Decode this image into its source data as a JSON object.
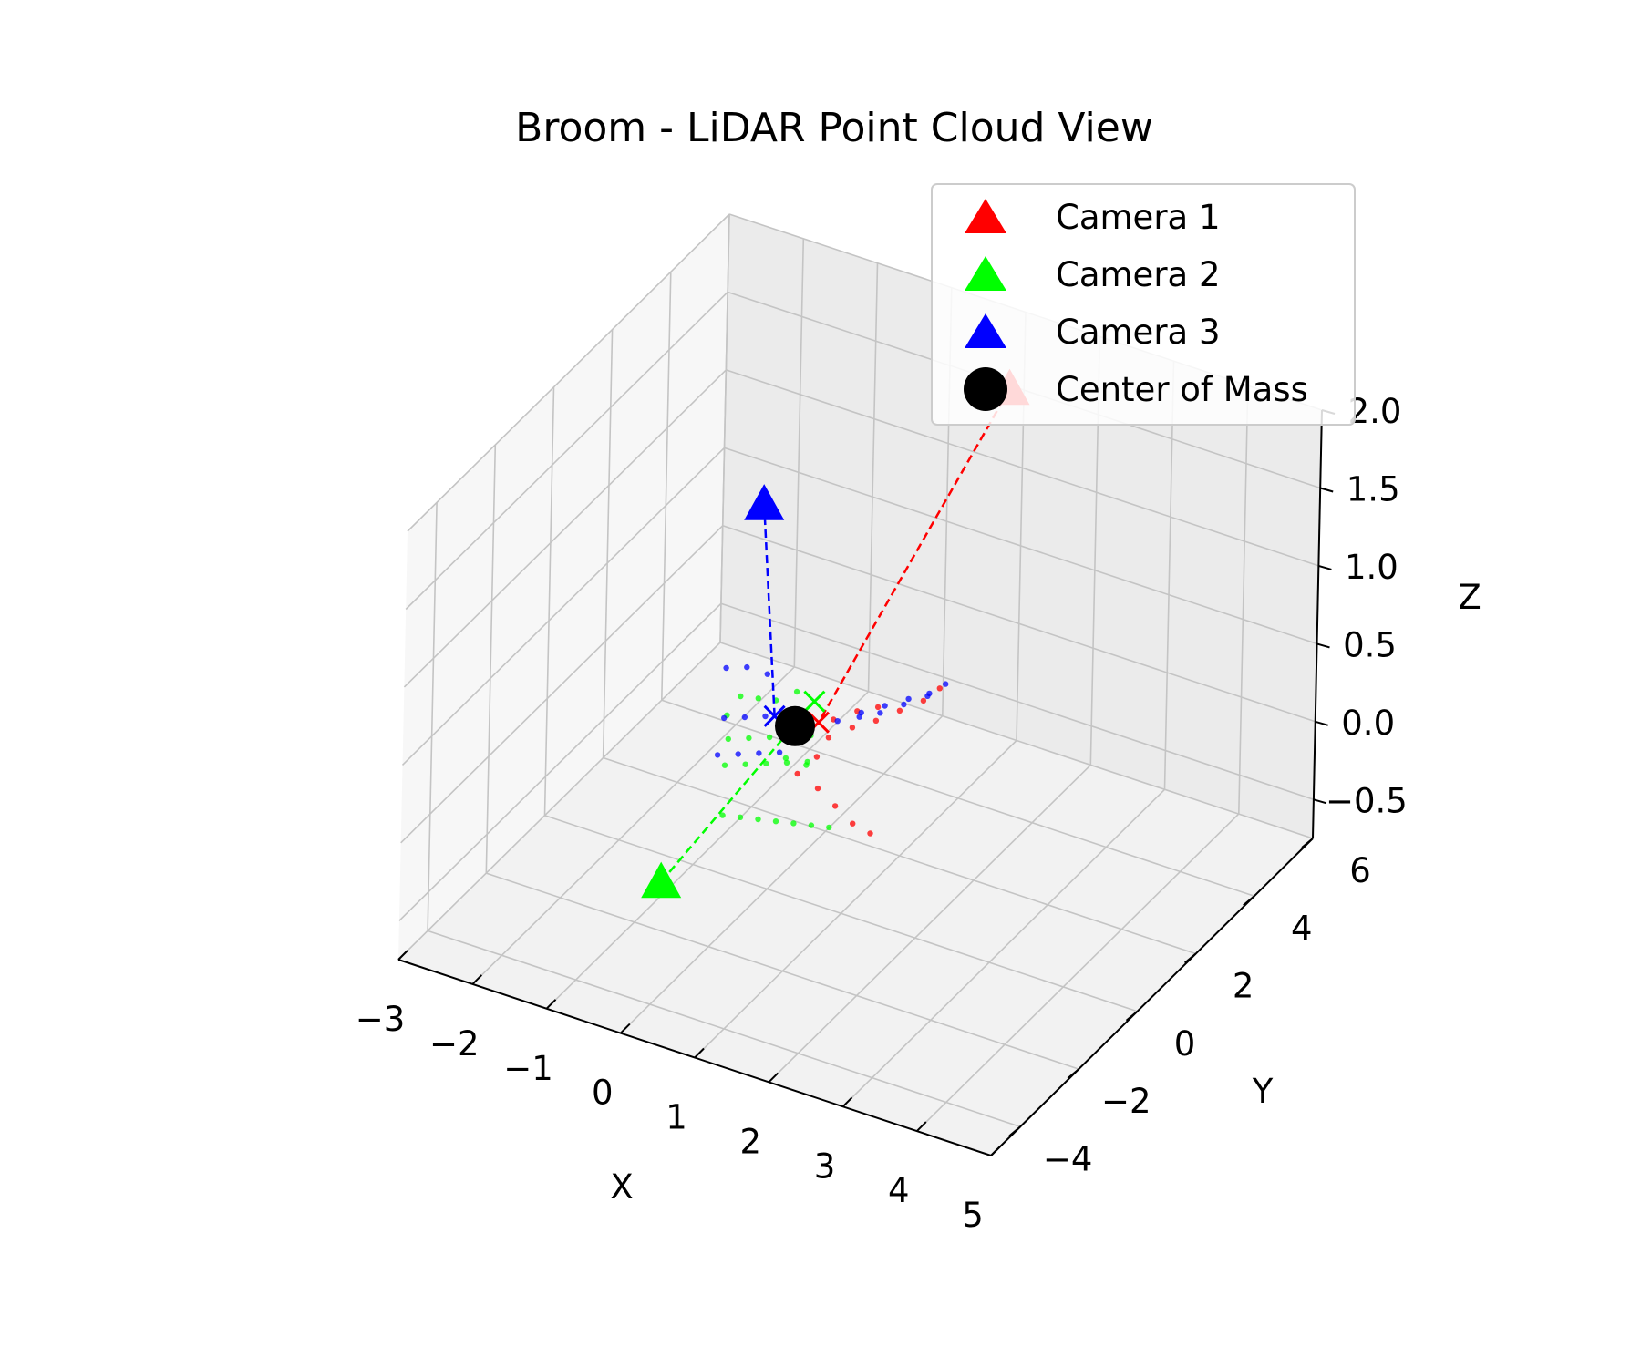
{
  "chart_data": {
    "type": "scatter",
    "projection": "3d",
    "title": "Broom - LiDAR Point Cloud View",
    "xlabel": "X",
    "ylabel": "Y",
    "zlabel": "Z",
    "xlim": [
      -3,
      5
    ],
    "ylim": [
      -5,
      6
    ],
    "zlim": [
      -0.75,
      2.0
    ],
    "x_ticks": [
      "−3",
      "−2",
      "−1",
      "0",
      "1",
      "2",
      "3",
      "4",
      "5"
    ],
    "y_ticks": [
      "−4",
      "−2",
      "0",
      "2",
      "4",
      "6"
    ],
    "z_ticks": [
      "−0.5",
      "0.0",
      "0.5",
      "1.0",
      "1.5",
      "2.0"
    ],
    "grid": true,
    "legend_position": "top-right",
    "legend": [
      {
        "label": "Camera 1",
        "marker": "triangle",
        "color": "#ff0000"
      },
      {
        "label": "Camera 2",
        "marker": "triangle",
        "color": "#00ff00"
      },
      {
        "label": "Camera 3",
        "marker": "triangle",
        "color": "#0000ff"
      },
      {
        "label": "Center of Mass",
        "marker": "circle",
        "color": "#000000"
      }
    ],
    "cameras": [
      {
        "name": "Camera 1",
        "x": 1.0,
        "y": 5.5,
        "z": 1.6,
        "color": "#ff0000"
      },
      {
        "name": "Camera 2",
        "x": 0.5,
        "y": -5.0,
        "z": 0.3,
        "color": "#00ff00"
      },
      {
        "name": "Camera 3",
        "x": -0.3,
        "y": 0.4,
        "z": 1.6,
        "color": "#0000ff"
      }
    ],
    "center_of_mass": {
      "x": 0.1,
      "y": 0.6,
      "z": 0.2,
      "color": "#000000"
    },
    "target_markers": [
      {
        "camera": "Camera 1",
        "x": 0.3,
        "y": 0.9,
        "z": 0.2,
        "color": "#ff0000"
      },
      {
        "camera": "Camera 2",
        "x": 0.2,
        "y": 1.0,
        "z": 0.3,
        "color": "#00ff00"
      },
      {
        "camera": "Camera 3",
        "x": -0.1,
        "y": 0.4,
        "z": 0.27,
        "color": "#0000ff"
      }
    ],
    "point_cloud": {
      "Camera 1": {
        "color": "#ff0000",
        "points": [
          [
            0.1,
            0.4,
            0.2
          ],
          [
            0.3,
            0.7,
            0.22
          ],
          [
            0.5,
            0.9,
            0.25
          ],
          [
            0.7,
            1.2,
            0.28
          ],
          [
            0.9,
            1.4,
            0.3
          ],
          [
            0.0,
            0.6,
            0.15
          ],
          [
            0.2,
            0.8,
            0.12
          ],
          [
            0.4,
            1.0,
            0.1
          ],
          [
            0.6,
            1.3,
            0.14
          ],
          [
            0.8,
            1.6,
            0.16
          ],
          [
            1.0,
            1.9,
            0.2
          ],
          [
            1.2,
            2.2,
            0.24
          ],
          [
            1.3,
            2.5,
            0.28
          ],
          [
            0.3,
            0.2,
            0.0
          ],
          [
            0.5,
            0.4,
            -0.1
          ],
          [
            0.7,
            0.5,
            -0.2
          ],
          [
            0.9,
            0.6,
            -0.3
          ],
          [
            0.2,
            0.5,
            0.3
          ],
          [
            0.4,
            0.6,
            0.05
          ],
          [
            1.1,
            0.7,
            -0.35
          ]
        ]
      },
      "Camera 2": {
        "color": "#00ff00",
        "points": [
          [
            -0.6,
            0.1,
            0.1
          ],
          [
            -0.4,
            0.3,
            0.1
          ],
          [
            -0.2,
            0.5,
            0.1
          ],
          [
            0.0,
            0.7,
            0.1
          ],
          [
            0.2,
            0.9,
            0.1
          ],
          [
            -0.6,
            0.0,
            -0.05
          ],
          [
            -0.4,
            0.2,
            -0.05
          ],
          [
            -0.2,
            0.4,
            -0.05
          ],
          [
            0.0,
            0.6,
            -0.05
          ],
          [
            0.2,
            0.8,
            -0.05
          ],
          [
            -0.5,
            -0.3,
            -0.3
          ],
          [
            -0.3,
            -0.2,
            -0.3
          ],
          [
            -0.1,
            -0.1,
            -0.3
          ],
          [
            0.1,
            0.0,
            -0.3
          ],
          [
            0.3,
            0.1,
            -0.3
          ],
          [
            0.5,
            0.2,
            -0.3
          ],
          [
            0.7,
            0.3,
            -0.3
          ],
          [
            -0.6,
            0.5,
            0.3
          ],
          [
            -0.4,
            0.6,
            0.3
          ],
          [
            -0.2,
            0.7,
            0.3
          ],
          [
            0.0,
            0.9,
            0.35
          ],
          [
            0.1,
            0.3,
            0.05
          ],
          [
            0.3,
            0.5,
            0.0
          ],
          [
            -0.7,
            0.3,
            0.2
          ]
        ]
      },
      "Camera 3": {
        "color": "#0000ff",
        "points": [
          [
            -0.8,
            0.5,
            0.45
          ],
          [
            -0.6,
            0.7,
            0.45
          ],
          [
            -0.4,
            0.9,
            0.4
          ],
          [
            -0.7,
            0.2,
            0.2
          ],
          [
            -0.5,
            0.4,
            0.2
          ],
          [
            -0.3,
            0.6,
            0.2
          ],
          [
            -0.7,
            0.0,
            0.0
          ],
          [
            -0.5,
            0.2,
            0.0
          ],
          [
            -0.3,
            0.4,
            0.0
          ],
          [
            -0.1,
            0.6,
            0.0
          ],
          [
            0.4,
            1.3,
            0.15
          ],
          [
            0.6,
            1.6,
            0.18
          ],
          [
            0.8,
            1.9,
            0.2
          ],
          [
            1.0,
            2.2,
            0.22
          ],
          [
            1.2,
            2.4,
            0.25
          ],
          [
            1.3,
            2.7,
            0.27
          ],
          [
            0.5,
            1.8,
            0.1
          ],
          [
            0.7,
            2.0,
            0.12
          ],
          [
            0.9,
            2.3,
            0.15
          ],
          [
            1.1,
            2.6,
            0.18
          ],
          [
            0.2,
            0.4,
            0.18
          ],
          [
            0.0,
            0.8,
            0.22
          ]
        ]
      }
    }
  }
}
